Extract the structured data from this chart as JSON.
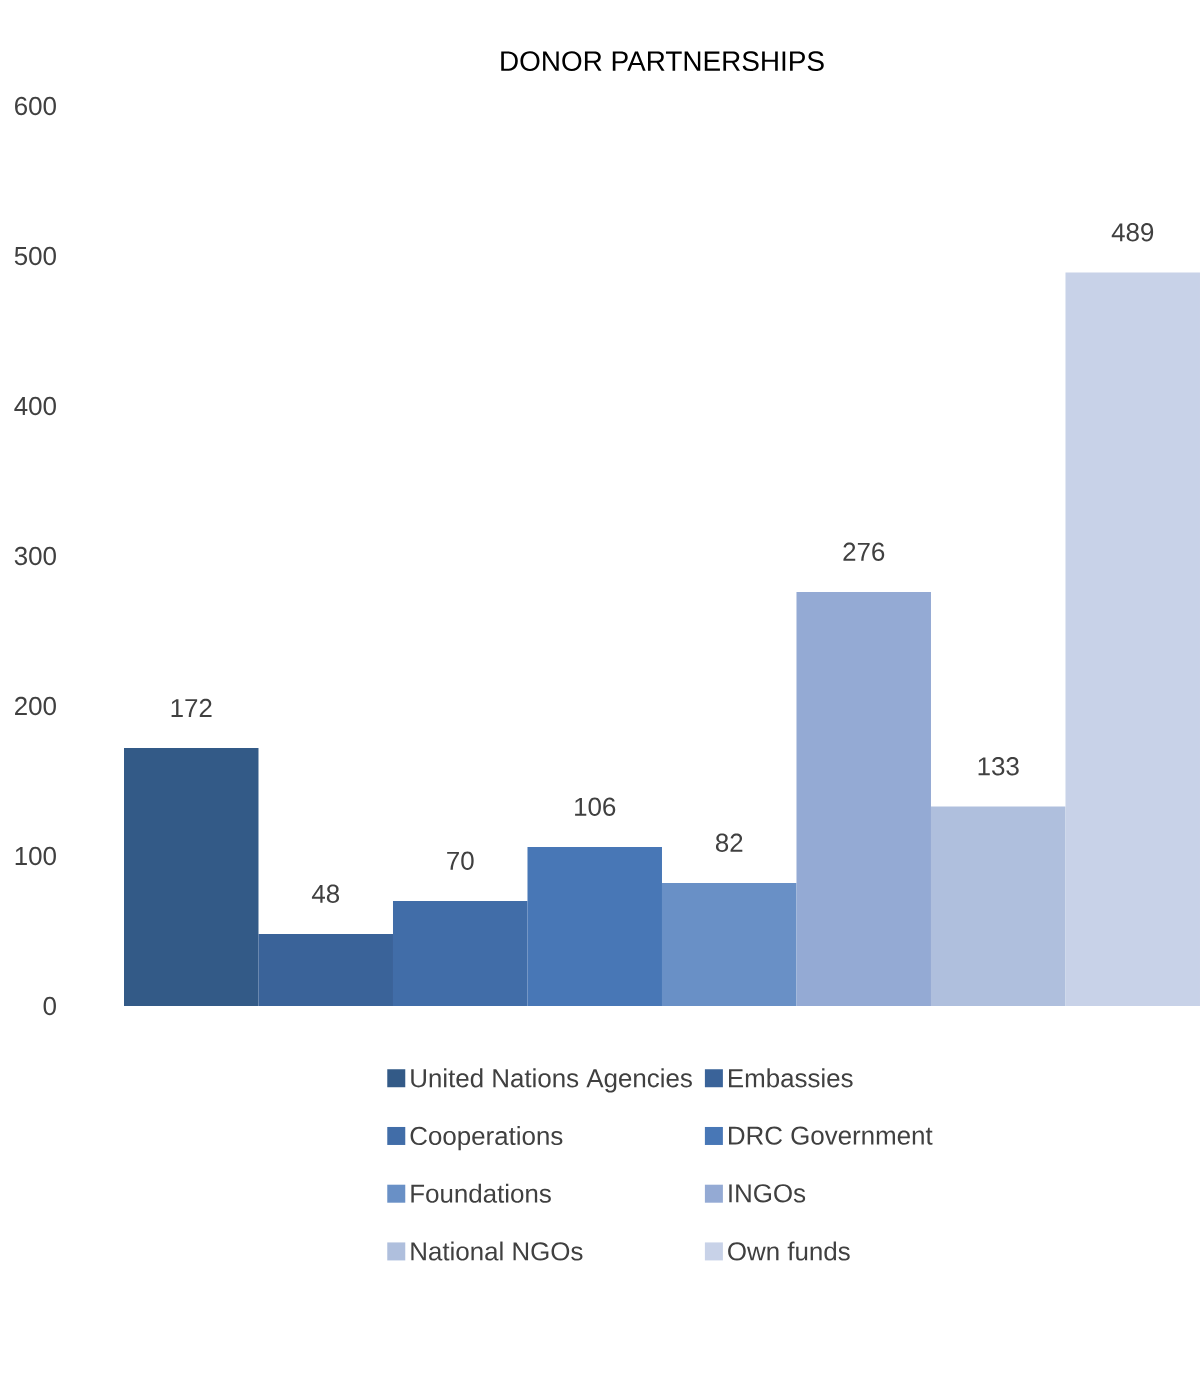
{
  "chart_data": {
    "type": "bar",
    "title": "DONOR PARTNERSHIPS",
    "categories": [
      null
    ],
    "series": [
      {
        "name": "United Nations Agencies",
        "color": "#335a87",
        "values": [
          172
        ]
      },
      {
        "name": "Embassies",
        "color": "#3a6399",
        "values": [
          48
        ]
      },
      {
        "name": "Cooperations",
        "color": "#416da8",
        "values": [
          70
        ]
      },
      {
        "name": "DRC Government",
        "color": "#4877b6",
        "values": [
          106
        ]
      },
      {
        "name": "Foundations",
        "color": "#6990c6",
        "values": [
          82
        ]
      },
      {
        "name": "INGOs",
        "color": "#94aad4",
        "values": [
          276
        ]
      },
      {
        "name": "National NGOs",
        "color": "#afbfdd",
        "values": [
          133
        ]
      },
      {
        "name": "Own funds",
        "color": "#c8d2e8",
        "values": [
          489
        ]
      }
    ],
    "ylim": [
      0,
      600
    ],
    "yticks": [
      0,
      100,
      200,
      300,
      400,
      500,
      600
    ],
    "data_labels": true,
    "grid": false,
    "legend": "bottom"
  }
}
